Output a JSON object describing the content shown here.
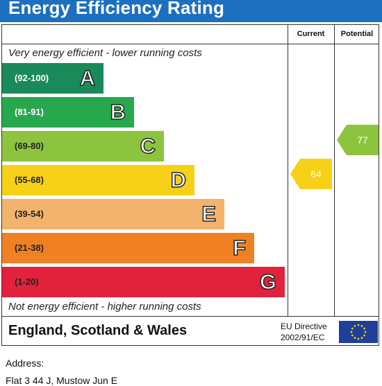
{
  "header": {
    "title": "Energy Efficiency Rating"
  },
  "columns": {
    "current": "Current",
    "potential": "Potential"
  },
  "notes": {
    "top": "Very energy efficient - lower running costs",
    "bottom": "Not energy efficient - higher running costs"
  },
  "bands": [
    {
      "range": "(92-100)",
      "letter": "A",
      "color": "#1a8a5a",
      "range_color": "#ffffff"
    },
    {
      "range": "(81-91)",
      "letter": "B",
      "color": "#28a84e",
      "range_color": "#ffffff"
    },
    {
      "range": "(69-80)",
      "letter": "C",
      "color": "#8cc43f",
      "range_color": "#222222"
    },
    {
      "range": "(55-68)",
      "letter": "D",
      "color": "#f7d117",
      "range_color": "#222222"
    },
    {
      "range": "(39-54)",
      "letter": "E",
      "color": "#f4b36c",
      "range_color": "#222222"
    },
    {
      "range": "(21-38)",
      "letter": "F",
      "color": "#ef8023",
      "range_color": "#222222"
    },
    {
      "range": "(1-20)",
      "letter": "G",
      "color": "#e2223c",
      "range_color": "#222222"
    }
  ],
  "ratings": {
    "current": {
      "value": "64",
      "band": "D",
      "color": "#f7d117"
    },
    "potential": {
      "value": "77",
      "band": "C",
      "color": "#8cc43f"
    }
  },
  "footer": {
    "country": "England, Scotland & Wales",
    "eu_line1": "EU Directive",
    "eu_line2": "2002/91/EC"
  },
  "address": {
    "label": "Address:",
    "line1": "Flat 3 44 J, Mustow Jun E"
  }
}
